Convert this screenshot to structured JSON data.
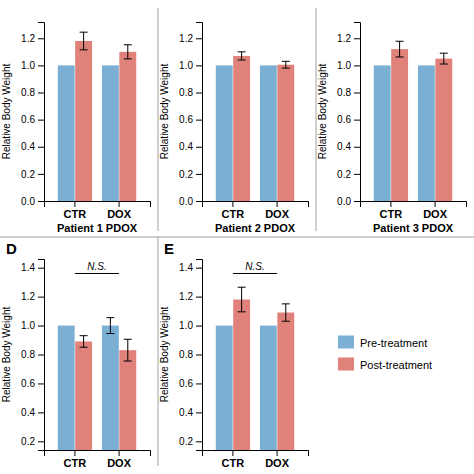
{
  "chart_data": [
    {
      "type": "bar",
      "xlabel": "Patient 1 PDOX",
      "ylabel": "Relative Body Weight",
      "categories": [
        "CTR",
        "DOX"
      ],
      "series": [
        {
          "name": "Pre-treatment",
          "color": "#7BAFD4",
          "values": [
            1.0,
            1.0
          ],
          "errors": [
            0.0,
            0.0
          ]
        },
        {
          "name": "Post-treatment",
          "color": "#E0827A",
          "values": [
            1.18,
            1.1
          ],
          "errors": [
            0.065,
            0.052
          ]
        }
      ],
      "ylim": [
        0,
        1.32
      ],
      "yticks": [
        {
          "value": 0.0,
          "label": "0.0"
        },
        0.2,
        0.4,
        0.6,
        0.8,
        {
          "value": 1.0,
          "label": "1.0"
        },
        1.2
      ],
      "grid": false
    },
    {
      "type": "bar",
      "xlabel": "Patient 2 PDOX",
      "ylabel": "Relative Body Weight",
      "categories": [
        "CTR",
        "DOX"
      ],
      "series": [
        {
          "name": "Pre-treatment",
          "color": "#7BAFD4",
          "values": [
            1.0,
            1.0
          ],
          "errors": [
            0.0,
            0.0
          ]
        },
        {
          "name": "Post-treatment",
          "color": "#E0827A",
          "values": [
            1.07,
            1.005
          ],
          "errors": [
            0.03,
            0.025
          ]
        }
      ],
      "ylim": [
        0,
        1.32
      ],
      "yticks": [
        {
          "value": 0.0,
          "label": "0.0"
        },
        0.2,
        0.4,
        0.6,
        0.8,
        {
          "value": 1.0,
          "label": "1.0"
        },
        1.2
      ],
      "grid": false
    },
    {
      "type": "bar",
      "xlabel": "Patient 3 PDOX",
      "ylabel": "Relative Body Weight",
      "categories": [
        "CTR",
        "DOX"
      ],
      "series": [
        {
          "name": "Pre-treatment",
          "color": "#7BAFD4",
          "values": [
            1.0,
            1.0
          ],
          "errors": [
            0.0,
            0.0
          ]
        },
        {
          "name": "Post-treatment",
          "color": "#E0827A",
          "values": [
            1.12,
            1.05
          ],
          "errors": [
            0.058,
            0.04
          ]
        }
      ],
      "ylim": [
        0,
        1.32
      ],
      "yticks": [
        {
          "value": 0.0,
          "label": "0.0"
        },
        0.2,
        0.4,
        0.6,
        0.8,
        {
          "value": 1.0,
          "label": "1.0"
        },
        1.2
      ],
      "grid": false
    },
    {
      "type": "bar",
      "title": "D",
      "ylabel": "Relative Body Weight",
      "categories": [
        "CTR",
        "DOX"
      ],
      "series": [
        {
          "name": "Pre-treatment",
          "color": "#7BAFD4",
          "values": [
            1.0,
            1.0
          ],
          "errors": [
            0.0,
            0.055
          ]
        },
        {
          "name": "Post-treatment",
          "color": "#E0827A",
          "values": [
            0.89,
            0.83
          ],
          "errors": [
            0.04,
            0.075
          ]
        }
      ],
      "ylim": [
        0.14,
        1.46
      ],
      "yticks": [
        0.2,
        0.4,
        0.6,
        0.8,
        {
          "value": 1.0,
          "label": "1.0"
        },
        1.2,
        1.4
      ],
      "annotations": [
        {
          "text": "N.S.",
          "y": 1.36
        }
      ],
      "grid": false
    },
    {
      "type": "bar",
      "title": "E",
      "ylabel": "Relative Body Weight",
      "categories": [
        "CTR",
        "DOX"
      ],
      "series": [
        {
          "name": "Pre-treatment",
          "color": "#7BAFD4",
          "values": [
            1.0,
            1.0
          ],
          "errors": [
            0.0,
            0.0
          ]
        },
        {
          "name": "Post-treatment",
          "color": "#E0827A",
          "values": [
            1.18,
            1.09
          ],
          "errors": [
            0.085,
            0.06
          ]
        }
      ],
      "ylim": [
        0.14,
        1.46
      ],
      "yticks": [
        0.2,
        0.4,
        0.6,
        0.8,
        {
          "value": 1.0,
          "label": "1.0"
        },
        1.2,
        1.4
      ],
      "annotations": [
        {
          "text": "N.S.",
          "y": 1.36
        }
      ],
      "legend": "right",
      "grid": false
    }
  ]
}
